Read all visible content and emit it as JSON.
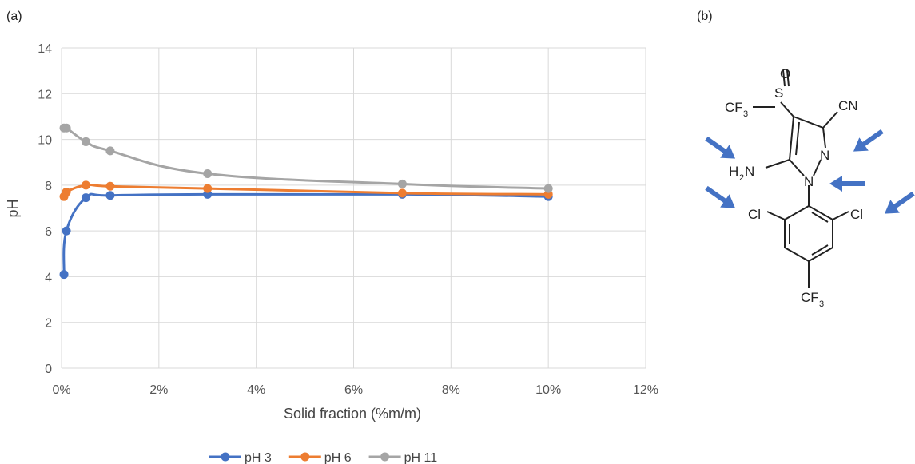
{
  "panel_labels": {
    "a": "(a)",
    "b": "(b)"
  },
  "chart_data": {
    "type": "line",
    "title": "",
    "xlabel": "Solid fraction (%m/m)",
    "ylabel": "pH",
    "xlim": [
      0,
      12
    ],
    "ylim": [
      0,
      14
    ],
    "x_ticks": [
      0,
      2,
      4,
      6,
      8,
      10,
      12
    ],
    "x_tick_labels": [
      "0%",
      "2%",
      "4%",
      "6%",
      "8%",
      "10%",
      "12%"
    ],
    "y_ticks": [
      0,
      2,
      4,
      6,
      8,
      10,
      12,
      14
    ],
    "y_tick_labels": [
      "0",
      "2",
      "4",
      "6",
      "8",
      "10",
      "12",
      "14"
    ],
    "grid": true,
    "legend_position": "bottom",
    "series": [
      {
        "name": "pH 3",
        "color": "#4472C4",
        "x": [
          0.05,
          0.1,
          0.5,
          1,
          3,
          7,
          10
        ],
        "y": [
          4.1,
          6.0,
          7.45,
          7.55,
          7.6,
          7.6,
          7.5
        ]
      },
      {
        "name": "pH 6",
        "color": "#ED7D31",
        "x": [
          0.05,
          0.1,
          0.5,
          1,
          3,
          7,
          10
        ],
        "y": [
          7.5,
          7.7,
          8.0,
          7.95,
          7.85,
          7.65,
          7.6
        ]
      },
      {
        "name": "pH 11",
        "color": "#A5A5A5",
        "x": [
          0.05,
          0.1,
          0.5,
          1,
          3,
          7,
          10
        ],
        "y": [
          10.5,
          10.5,
          9.9,
          9.5,
          8.5,
          8.05,
          7.85
        ]
      }
    ]
  },
  "molecule": {
    "arrow_color": "#4472C4",
    "labels": {
      "cf3_top": "CF",
      "cf3_top_sub": "3",
      "sulfur": "S",
      "oxygen": "O",
      "cyano": "CN",
      "amino_h": "H",
      "amino_sub": "2",
      "amino_n": "N",
      "ring_n2": "N",
      "ring_n1": "N",
      "chloro_left": "Cl",
      "chloro_right": "Cl",
      "cf3_bottom": "CF",
      "cf3_bottom_sub": "3"
    }
  }
}
